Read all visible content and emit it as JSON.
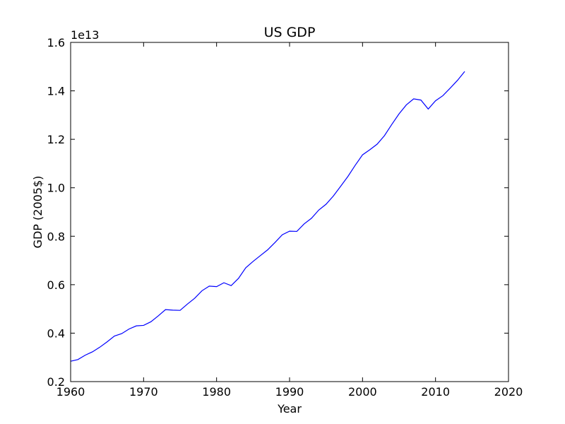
{
  "chart_data": {
    "type": "line",
    "title": "US GDP",
    "xlabel": "Year",
    "ylabel": "GDP (2005$)",
    "offset_label": "1e13",
    "xlim": [
      1960,
      2020
    ],
    "ylim": [
      0.2,
      1.6
    ],
    "x_ticks": [
      1960,
      1970,
      1980,
      1990,
      2000,
      2010,
      2020
    ],
    "y_ticks": [
      0.2,
      0.4,
      0.6,
      0.8,
      1.0,
      1.2,
      1.4,
      1.6
    ],
    "x_tick_labels": [
      "1960",
      "1970",
      "1980",
      "1990",
      "2000",
      "2010",
      "2020"
    ],
    "y_tick_labels": [
      "0.2",
      "0.4",
      "0.6",
      "0.8",
      "1.0",
      "1.2",
      "1.4",
      "1.6"
    ],
    "grid": false,
    "line_color": "#0000ff",
    "x": [
      1960,
      1961,
      1962,
      1963,
      1964,
      1965,
      1966,
      1967,
      1968,
      1969,
      1970,
      1971,
      1972,
      1973,
      1974,
      1975,
      1976,
      1977,
      1978,
      1979,
      1980,
      1981,
      1982,
      1983,
      1984,
      1985,
      1986,
      1987,
      1988,
      1989,
      1990,
      1991,
      1992,
      1993,
      1994,
      1995,
      1996,
      1997,
      1998,
      1999,
      2000,
      2001,
      2002,
      2003,
      2004,
      2005,
      2006,
      2007,
      2008,
      2009,
      2010,
      2011,
      2012,
      2013,
      2014
    ],
    "values": [
      0.284,
      0.291,
      0.309,
      0.323,
      0.342,
      0.364,
      0.388,
      0.398,
      0.417,
      0.43,
      0.432,
      0.447,
      0.471,
      0.497,
      0.495,
      0.494,
      0.52,
      0.544,
      0.575,
      0.594,
      0.592,
      0.608,
      0.596,
      0.626,
      0.67,
      0.696,
      0.72,
      0.744,
      0.774,
      0.806,
      0.821,
      0.82,
      0.851,
      0.874,
      0.908,
      0.932,
      0.966,
      1.006,
      1.047,
      1.093,
      1.136,
      1.157,
      1.18,
      1.215,
      1.261,
      1.305,
      1.342,
      1.367,
      1.362,
      1.325,
      1.359,
      1.38,
      1.411,
      1.443,
      1.48
    ]
  }
}
